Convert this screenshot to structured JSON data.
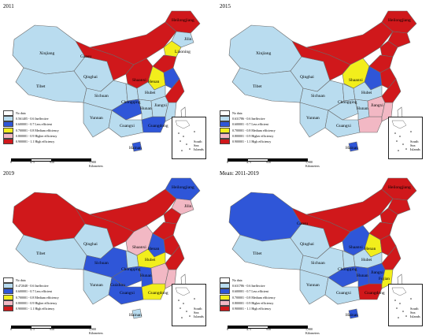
{
  "colors": {
    "no_data": "#ffffff",
    "ineffective": "#b9dcef",
    "less_efficient": "#2f56d8",
    "medium": "#f2ee1c",
    "higher": "#f2b8c4",
    "high": "#d0181b",
    "border": "#6a6a6a"
  },
  "panels": [
    {
      "title": "2011",
      "legend": {
        "no_data": "No data",
        "items": [
          "0.561405 - 0.6 Ineffective",
          "0.600001 - 0.7 Less efficient",
          "0.700001 - 0.8 Medium efficiency",
          "0.800001 - 0.9 Higher efficiency",
          "0.900001 - 1.1 High efficiency"
        ]
      },
      "provinces": [
        {
          "name": "Xinjiang",
          "c": "ineffective"
        },
        {
          "name": "Tibet",
          "c": "ineffective"
        },
        {
          "name": "Qinghai",
          "c": "ineffective"
        },
        {
          "name": "Gansu",
          "c": "high"
        },
        {
          "name": "InnerMongolia",
          "c": "high"
        },
        {
          "name": "Heilongjiang",
          "c": "high"
        },
        {
          "name": "Jilin",
          "c": "ineffective"
        },
        {
          "name": "Liaoning",
          "c": "medium"
        },
        {
          "name": "Sichuan",
          "c": "ineffective"
        },
        {
          "name": "Yunnan",
          "c": "ineffective"
        },
        {
          "name": "Chongqing",
          "c": "ineffective"
        },
        {
          "name": "Shaanxi",
          "c": "high"
        },
        {
          "name": "Henan",
          "c": "medium"
        },
        {
          "name": "Hubei",
          "c": "ineffective"
        },
        {
          "name": "Hunan",
          "c": "ineffective"
        },
        {
          "name": "Guangxi",
          "c": "ineffective"
        },
        {
          "name": "Guangdong",
          "c": "less_efficient"
        },
        {
          "name": "Jiangxi",
          "c": "ineffective"
        },
        {
          "name": "Fujian",
          "c": "ineffective"
        },
        {
          "name": "Zhejiang",
          "c": "high"
        },
        {
          "name": "Jiangsu",
          "c": "less_efficient"
        },
        {
          "name": "Shandong",
          "c": "high"
        },
        {
          "name": "Guizhou",
          "c": "less_efficient"
        },
        {
          "name": "Hainan",
          "c": "less_efficient"
        },
        {
          "name": "Taiwan",
          "c": "no_data"
        }
      ],
      "labels": [
        "Xinjiang",
        "Gansu",
        "Heilongjiang",
        "Jilin",
        "Liaoning",
        "Tibet",
        "Qinghai",
        "Shaanxi",
        "Henan",
        "Hubei",
        "Sichuan",
        "Chongqing",
        "Hunan",
        "Jiangxi",
        "Yunnan",
        "Guangxi",
        "Guangdong",
        "Hainan"
      ]
    },
    {
      "title": "2015",
      "legend": {
        "no_data": "No data",
        "items": [
          "0.631786 - 0.6 Ineffective",
          "0.600001 - 0.7 Less efficient",
          "0.700001 - 0.8 Medium efficiency",
          "0.800001 - 0.9 Higher efficiency",
          "0.900001 - 1.1 High efficiency"
        ]
      },
      "provinces": [
        {
          "name": "Xinjiang",
          "c": "ineffective"
        },
        {
          "name": "Tibet",
          "c": "ineffective"
        },
        {
          "name": "Qinghai",
          "c": "ineffective"
        },
        {
          "name": "Gansu",
          "c": "high"
        },
        {
          "name": "InnerMongolia",
          "c": "high"
        },
        {
          "name": "Heilongjiang",
          "c": "high"
        },
        {
          "name": "Jilin",
          "c": "high"
        },
        {
          "name": "Liaoning",
          "c": "high"
        },
        {
          "name": "Sichuan",
          "c": "ineffective"
        },
        {
          "name": "Yunnan",
          "c": "ineffective"
        },
        {
          "name": "Chongqing",
          "c": "ineffective"
        },
        {
          "name": "Shaanxi",
          "c": "medium"
        },
        {
          "name": "Henan",
          "c": "less_efficient"
        },
        {
          "name": "Hubei",
          "c": "ineffective"
        },
        {
          "name": "Hunan",
          "c": "ineffective"
        },
        {
          "name": "Guangxi",
          "c": "ineffective"
        },
        {
          "name": "Guangdong",
          "c": "higher"
        },
        {
          "name": "Jiangxi",
          "c": "higher"
        },
        {
          "name": "Fujian",
          "c": "higher"
        },
        {
          "name": "Zhejiang",
          "c": "high"
        },
        {
          "name": "Jiangsu",
          "c": "high"
        },
        {
          "name": "Shandong",
          "c": "high"
        },
        {
          "name": "Guizhou",
          "c": "ineffective"
        },
        {
          "name": "Hainan",
          "c": "less_efficient"
        },
        {
          "name": "Taiwan",
          "c": "no_data"
        }
      ],
      "labels": [
        "Xinjiang",
        "Heilongjiang",
        "Tibet",
        "Qinghai",
        "Shaanxi",
        "Hubei",
        "Sichuan",
        "Chongqing",
        "Hunan",
        "Jiangxi",
        "Yunnan",
        "Guangxi",
        "Hainan"
      ]
    },
    {
      "title": "2019",
      "legend": {
        "no_data": "No data",
        "items": [
          "0.472048 - 0.6 Ineffective",
          "0.600001 - 0.7 Less efficient",
          "0.700001 - 0.8 Medium efficiency",
          "0.800001 - 0.9 Higher efficiency",
          "0.900001 - 1.1 High efficiency"
        ]
      },
      "provinces": [
        {
          "name": "Xinjiang",
          "c": "high"
        },
        {
          "name": "Tibet",
          "c": "ineffective"
        },
        {
          "name": "Qinghai",
          "c": "ineffective"
        },
        {
          "name": "Gansu",
          "c": "high"
        },
        {
          "name": "InnerMongolia",
          "c": "high"
        },
        {
          "name": "Heilongjiang",
          "c": "less_efficient"
        },
        {
          "name": "Jilin",
          "c": "higher"
        },
        {
          "name": "Liaoning",
          "c": "high"
        },
        {
          "name": "Sichuan",
          "c": "less_efficient"
        },
        {
          "name": "Yunnan",
          "c": "ineffective"
        },
        {
          "name": "Chongqing",
          "c": "ineffective"
        },
        {
          "name": "Shaanxi",
          "c": "higher"
        },
        {
          "name": "Henan",
          "c": "less_efficient"
        },
        {
          "name": "Hubei",
          "c": "medium"
        },
        {
          "name": "Hunan",
          "c": "less_efficient"
        },
        {
          "name": "Guangxi",
          "c": "less_efficient"
        },
        {
          "name": "Guangdong",
          "c": "medium"
        },
        {
          "name": "Jiangxi",
          "c": "higher"
        },
        {
          "name": "Fujian",
          "c": "higher"
        },
        {
          "name": "Zhejiang",
          "c": "high"
        },
        {
          "name": "Jiangsu",
          "c": "high"
        },
        {
          "name": "Shandong",
          "c": "high"
        },
        {
          "name": "Guizhou",
          "c": "less_efficient"
        },
        {
          "name": "Hainan",
          "c": "ineffective"
        },
        {
          "name": "Taiwan",
          "c": "no_data"
        }
      ],
      "labels": [
        "Heilongjiang",
        "Jilin",
        "Qinghai",
        "Tibet",
        "Shaanxi",
        "Henan",
        "Hubei",
        "Sichuan",
        "Chongqing",
        "Guizhou",
        "Hunan",
        "Yunnan",
        "Guangxi",
        "Guangdong",
        "Hainan"
      ]
    },
    {
      "title": "Mean: 2011-2019",
      "legend": {
        "no_data": "No data",
        "items": [
          "0.631786 - 0.6 Ineffective",
          "0.600001 - 0.7 Less efficient",
          "0.700001 - 0.8 Medium efficiency",
          "0.800001 - 0.9 Higher efficiency",
          "0.900001 - 1.1 High efficiency"
        ]
      },
      "provinces": [
        {
          "name": "Xinjiang",
          "c": "less_efficient"
        },
        {
          "name": "Tibet",
          "c": "ineffective"
        },
        {
          "name": "Qinghai",
          "c": "ineffective"
        },
        {
          "name": "Gansu",
          "c": "high"
        },
        {
          "name": "InnerMongolia",
          "c": "high"
        },
        {
          "name": "Heilongjiang",
          "c": "high"
        },
        {
          "name": "Jilin",
          "c": "high"
        },
        {
          "name": "Liaoning",
          "c": "high"
        },
        {
          "name": "Sichuan",
          "c": "ineffective"
        },
        {
          "name": "Yunnan",
          "c": "ineffective"
        },
        {
          "name": "Chongqing",
          "c": "ineffective"
        },
        {
          "name": "Shaanxi",
          "c": "less_efficient"
        },
        {
          "name": "Henan",
          "c": "medium"
        },
        {
          "name": "Hubei",
          "c": "ineffective"
        },
        {
          "name": "Hunan",
          "c": "less_efficient"
        },
        {
          "name": "Guangxi",
          "c": "ineffective"
        },
        {
          "name": "Guangdong",
          "c": "high"
        },
        {
          "name": "Jiangxi",
          "c": "less_efficient"
        },
        {
          "name": "Fujian",
          "c": "medium"
        },
        {
          "name": "Zhejiang",
          "c": "high"
        },
        {
          "name": "Jiangsu",
          "c": "high"
        },
        {
          "name": "Shandong",
          "c": "high"
        },
        {
          "name": "Guizhou",
          "c": "less_efficient"
        },
        {
          "name": "Hainan",
          "c": "less_efficient"
        },
        {
          "name": "Taiwan",
          "c": "no_data"
        }
      ],
      "labels": [
        "Heilongjiang",
        "Gansu",
        "Qinghai",
        "Tibet",
        "Shaanxi",
        "Henan",
        "Hubei",
        "Sichuan",
        "Chongqing",
        "Hunan",
        "Jiangxi",
        "Fujian",
        "Yunnan",
        "Guangxi",
        "Guangdong",
        "Hainan"
      ]
    }
  ],
  "scale": {
    "ticks": [
      "0",
      "475",
      "950",
      "1,900 Kilometers"
    ]
  },
  "inset_label": [
    "South",
    "Sea",
    "Islands"
  ]
}
